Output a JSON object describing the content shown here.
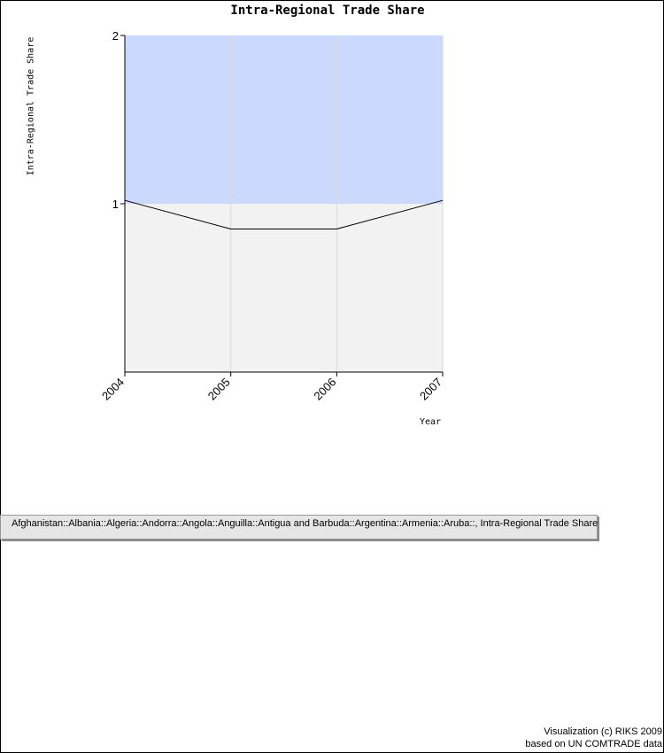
{
  "chart_data": {
    "type": "line",
    "title": "Intra-Regional Trade Share",
    "xlabel": "Year",
    "ylabel": "Intra-Regional Trade Share",
    "categories": [
      "2004",
      "2005",
      "2006",
      "2007"
    ],
    "series": [
      {
        "name": "Afghanistan::Albania::Algeria::Andorra::Angola::Anguilla::Antigua and Barbuda::Argentina::Armenia::Aruba::, Intra-Regional Trade Share",
        "values": [
          1.02,
          0.85,
          0.85,
          1.02
        ]
      }
    ],
    "ylim": [
      0,
      2
    ],
    "yticks": [
      "1",
      "2"
    ],
    "highlight_band": {
      "from": 1,
      "to": 2,
      "color": "#ccd9ff"
    },
    "plot_background": "#f2f2f2",
    "line_color": "#000000",
    "grid": "vertical"
  },
  "legend": {
    "label": "Afghanistan::Albania::Algeria::Andorra::Angola::Anguilla::Antigua and Barbuda::Argentina::Armenia::Aruba::, Intra-Regional Trade Share"
  },
  "footer": {
    "line1": "Visualization (c) RIKS 2009",
    "line2": "based on UN COMTRADE data"
  }
}
